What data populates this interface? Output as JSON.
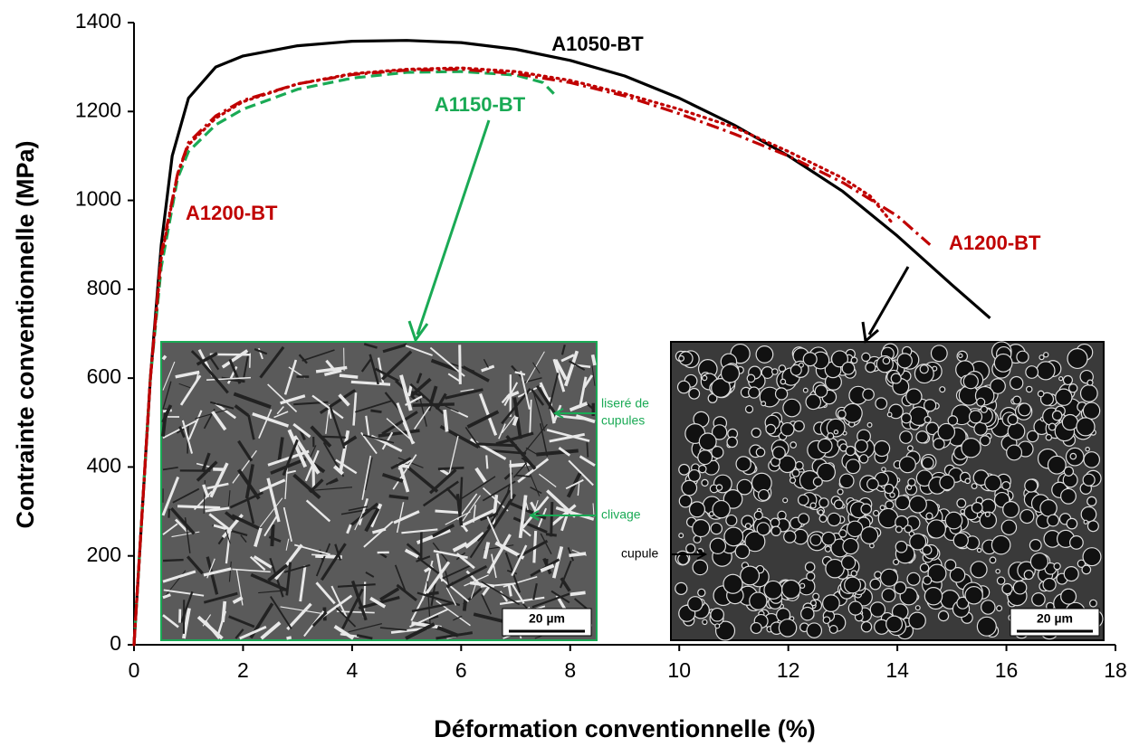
{
  "chart_data": {
    "type": "line",
    "xlabel": "Déformation conventionnelle (%)",
    "ylabel": "Contrainte conventionnelle (MPa)",
    "xlim": [
      0,
      18
    ],
    "ylim": [
      0,
      1400
    ],
    "xticks": [
      0,
      2,
      4,
      6,
      8,
      10,
      12,
      14,
      16,
      18
    ],
    "yticks": [
      0,
      200,
      400,
      600,
      800,
      1000,
      1200,
      1400
    ],
    "series": [
      {
        "name": "A1050-BT",
        "color": "#000000",
        "style": "solid",
        "x": [
          0,
          0.3,
          0.5,
          0.7,
          1,
          1.5,
          2,
          3,
          4,
          5,
          6,
          7,
          8,
          9,
          10,
          11,
          12,
          13,
          14,
          15,
          15.7
        ],
        "values": [
          0,
          600,
          900,
          1100,
          1230,
          1300,
          1325,
          1348,
          1358,
          1360,
          1355,
          1340,
          1315,
          1280,
          1230,
          1170,
          1100,
          1020,
          920,
          810,
          735
        ]
      },
      {
        "name": "A1150-BT",
        "color": "#1aaa55",
        "style": "dashed",
        "x": [
          0,
          0.3,
          0.5,
          0.8,
          1,
          1.5,
          2,
          3,
          4,
          5,
          6,
          7,
          7.5,
          7.7
        ],
        "values": [
          0,
          600,
          850,
          1050,
          1110,
          1170,
          1205,
          1250,
          1275,
          1288,
          1290,
          1282,
          1265,
          1240
        ]
      },
      {
        "name": "A1200-BT",
        "color": "#c00000",
        "style": "dotted",
        "x": [
          0,
          0.3,
          0.5,
          0.8,
          1,
          1.5,
          2,
          3,
          4,
          5,
          6,
          7,
          8,
          9,
          10,
          11,
          12,
          13,
          13.5,
          13.9
        ],
        "values": [
          0,
          600,
          870,
          1060,
          1125,
          1185,
          1222,
          1262,
          1285,
          1295,
          1298,
          1290,
          1270,
          1240,
          1205,
          1165,
          1110,
          1050,
          1010,
          950
        ]
      },
      {
        "name": "A1200-BT",
        "color": "#c00000",
        "style": "dashdot",
        "x": [
          0,
          0.3,
          0.5,
          0.8,
          1,
          1.5,
          2,
          3,
          4,
          5,
          6,
          7,
          8,
          9,
          10,
          11,
          12,
          13,
          14,
          14.6
        ],
        "values": [
          0,
          600,
          880,
          1060,
          1130,
          1190,
          1225,
          1262,
          1283,
          1293,
          1295,
          1285,
          1265,
          1235,
          1195,
          1150,
          1100,
          1040,
          965,
          900
        ]
      }
    ],
    "annotations": [
      "liseré de",
      "cupules",
      "clivage",
      "cupule",
      "20 µm",
      "20 µm"
    ]
  }
}
